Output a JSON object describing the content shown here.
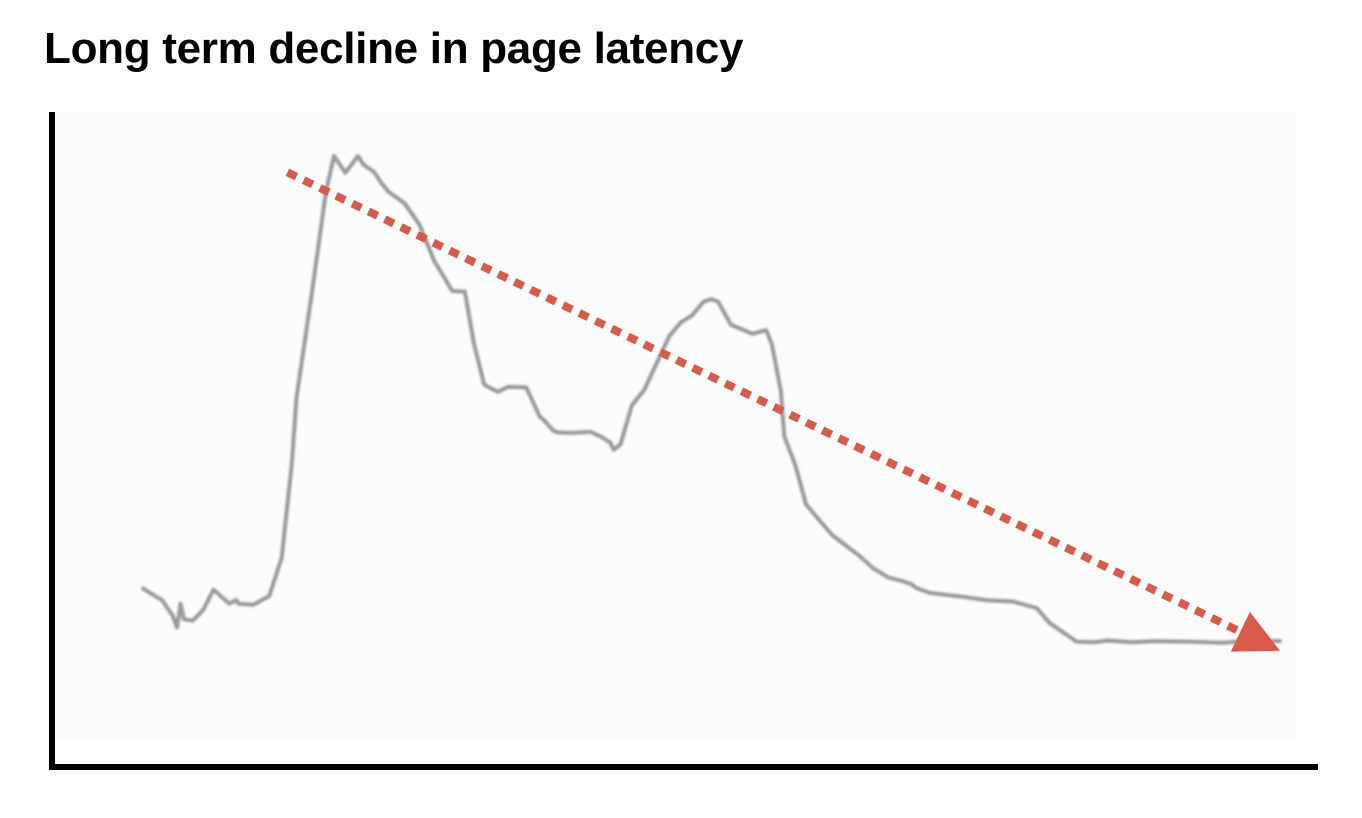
{
  "title": "Long term decline in page latency",
  "colors": {
    "line": "#999999",
    "trend": "#d95a48",
    "axis": "#000000",
    "plot_background": "#fbfcfc"
  },
  "chart_data": {
    "type": "line",
    "title": "Long term decline in page latency",
    "xlabel": "",
    "ylabel": "",
    "xlim": [
      0,
      100
    ],
    "ylim": [
      0,
      100
    ],
    "grid": false,
    "axis_ticks": false,
    "series": [
      {
        "style": "sketch line",
        "x": [
          0,
          1.7,
          2.6,
          3.0,
          3.3,
          3.6,
          4.4,
          5.3,
          6.2,
          7.6,
          8.2,
          8.4,
          9.7,
          11.1,
          12.2,
          13.1,
          13.5,
          14.8,
          16.1,
          16.5,
          16.8,
          17.8,
          18.9,
          19.4,
          20.3,
          20.9,
          21.6,
          23.0,
          24.3,
          25.6,
          27.2,
          28.3,
          29.1,
          29.8,
          30.0,
          31.2,
          32.1,
          33.7,
          34.9,
          35.2,
          36.1,
          36.5,
          37.6,
          39.4,
          40.3,
          41.1,
          41.4,
          42.0,
          43.0,
          44.1,
          44.8,
          46.3,
          47.3,
          48.3,
          49.3,
          50.0,
          50.6,
          51.7,
          53.6,
          54.8,
          55.3,
          56.1,
          56.4,
          57.4,
          58.3,
          59.2,
          60.6,
          62.9,
          64.3,
          65.6,
          66.6,
          67.6,
          68.0,
          69.2,
          72.0,
          74.3,
          76.5,
          78.6,
          79.7,
          82.1,
          83.7,
          84.8,
          87.0,
          89.0,
          91.3,
          92.2,
          93.5,
          94.9,
          96.3,
          98.3,
          100
        ],
        "y": [
          20.2,
          18.0,
          15.2,
          13.0,
          17.4,
          14.5,
          14.3,
          16.3,
          20.0,
          17.4,
          18.1,
          17.4,
          17.2,
          18.8,
          25.9,
          43.4,
          55.4,
          74.0,
          93.6,
          97.2,
          100,
          96.9,
          100,
          98.4,
          97.1,
          95.2,
          93.4,
          91.3,
          87.4,
          80.7,
          75.1,
          75.0,
          65.4,
          59.6,
          57.8,
          56.5,
          57.4,
          57.3,
          51.9,
          51.4,
          49.3,
          49.0,
          48.9,
          49.1,
          48.2,
          47.1,
          45.8,
          46.8,
          54.0,
          56.9,
          60.1,
          66.8,
          69.3,
          70.6,
          73.1,
          73.6,
          73.1,
          68.9,
          67.2,
          67.9,
          65.3,
          56.6,
          48.3,
          42.8,
          35.8,
          33.5,
          30.1,
          26.4,
          23.8,
          22.2,
          21.7,
          21.0,
          20.3,
          19.4,
          18.7,
          18.0,
          17.8,
          16.6,
          13.9,
          10.4,
          10.3,
          10.6,
          10.3,
          10.5,
          10.4,
          10.4,
          10.3,
          10.2,
          10.4,
          10.5,
          10.5
        ]
      },
      {
        "style": "dotted trend arrow",
        "x": [
          12.7,
          100
        ],
        "y": [
          97.0,
          8.7
        ]
      }
    ]
  }
}
